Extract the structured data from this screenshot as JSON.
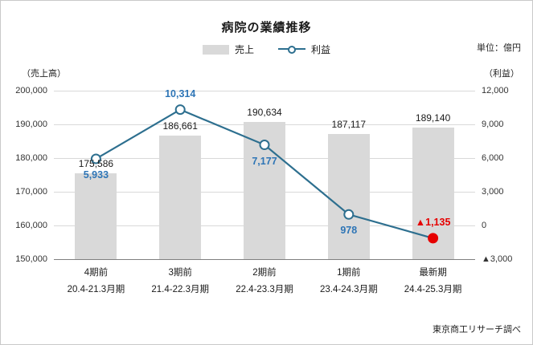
{
  "colors": {
    "bar": "#d9d9d9",
    "line": "#2d6f8f",
    "profit_label": "#2e75b6",
    "negative": "#e60000",
    "grid": "#d9d9d9"
  },
  "chart_data": {
    "type": "combo-bar-line",
    "title": "病院の業績推移",
    "unit_note": "単位：億円",
    "axis_captions": {
      "left": "（売上高）",
      "right": "（利益）"
    },
    "legend": {
      "position": "top",
      "entries": [
        "売上",
        "利益"
      ]
    },
    "categories": [
      "4期前",
      "3期前",
      "2期前",
      "1期前",
      "最新期"
    ],
    "category_periods": [
      "20.4-21.3月期",
      "21.4-22.3月期",
      "22.4-23.3月期",
      "23.4-24.3月期",
      "24.4-25.3月期"
    ],
    "series": [
      {
        "name": "売上",
        "type": "bar",
        "axis": "left",
        "values": [
          175586,
          186661,
          190634,
          187117,
          189140
        ],
        "labels": [
          "175,586",
          "186,661",
          "190,634",
          "187,117",
          "189,140"
        ]
      },
      {
        "name": "利益",
        "type": "line",
        "axis": "right",
        "values": [
          5933,
          10314,
          7177,
          978,
          -1135
        ],
        "labels": [
          "5,933",
          "10,314",
          "7,177",
          "978",
          "▲1,135"
        ],
        "label_positions": [
          "below",
          "above",
          "below",
          "below",
          "above"
        ]
      }
    ],
    "left_axis": {
      "min": 150000,
      "max": 200000,
      "ticks": [
        "150,000",
        "160,000",
        "170,000",
        "180,000",
        "190,000",
        "200,000"
      ]
    },
    "right_axis": {
      "min": -3000,
      "max": 12000,
      "ticks": [
        "▲3,000",
        "0",
        "3,000",
        "6,000",
        "9,000",
        "12,000"
      ]
    },
    "grid": true,
    "source": "東京商工リサーチ調べ"
  }
}
